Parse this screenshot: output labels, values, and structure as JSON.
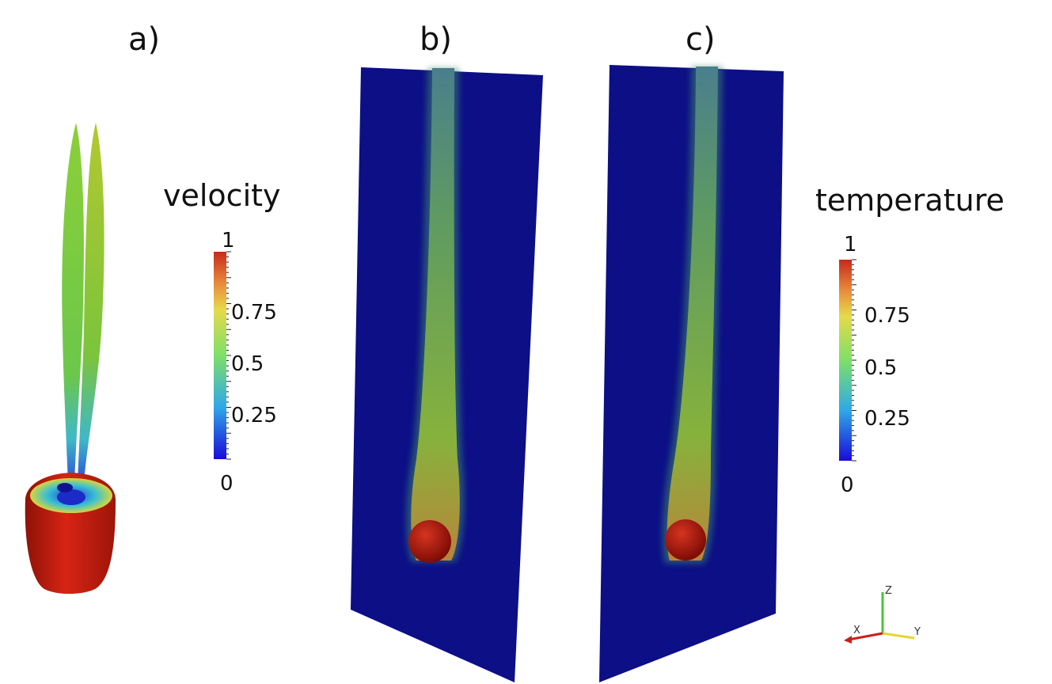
{
  "panels": {
    "a": "a)",
    "b": "b)",
    "c": "c)"
  },
  "legend_velocity": {
    "title": "velocity",
    "ticks": [
      "1",
      "0.75",
      "0.5",
      "0.25",
      "0"
    ]
  },
  "legend_temperature": {
    "title": "temperature",
    "ticks": [
      "1",
      "0.75",
      "0.5",
      "0.25",
      "0"
    ]
  },
  "axes_triad": {
    "x": "X",
    "y": "Y",
    "z": "Z"
  },
  "colormap": [
    "#1a0bd9",
    "#2fa8e8",
    "#7de068",
    "#e7d94a",
    "#e8893a",
    "#c62a1c"
  ]
}
